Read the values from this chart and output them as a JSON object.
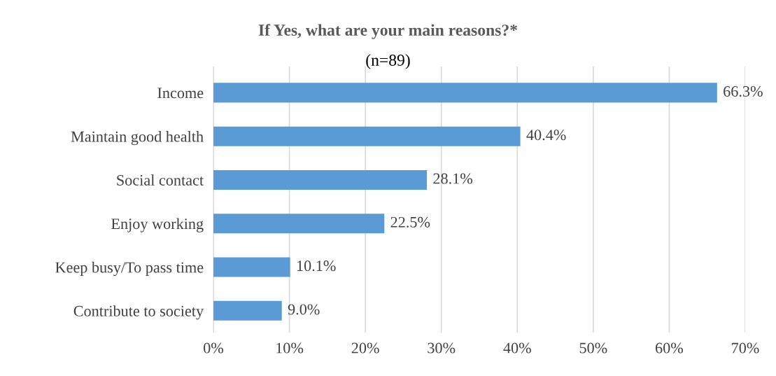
{
  "chart_data": {
    "type": "bar",
    "orientation": "horizontal",
    "title": "If Yes, what are your main reasons?*",
    "subtitle": "(n=89)",
    "categories": [
      "Income",
      "Maintain good health",
      "Social contact",
      "Enjoy working",
      "Keep busy/To pass time",
      "Contribute to society"
    ],
    "values": [
      66.3,
      40.4,
      28.1,
      22.5,
      10.1,
      9.0
    ],
    "value_labels": [
      "66.3%",
      "40.4%",
      "28.1%",
      "22.5%",
      "10.1%",
      "9.0%"
    ],
    "color": "#5b9bd5",
    "xlim": [
      0,
      70
    ],
    "xticks": [
      {
        "value": 0,
        "label": "0%"
      },
      {
        "value": 10,
        "label": "10%"
      },
      {
        "value": 20,
        "label": "20%"
      },
      {
        "value": 30,
        "label": "30%"
      },
      {
        "value": 40,
        "label": "40%"
      },
      {
        "value": 50,
        "label": "50%"
      },
      {
        "value": 60,
        "label": "60%"
      },
      {
        "value": 70,
        "label": "70%"
      }
    ],
    "grid": "x",
    "legend": false
  }
}
